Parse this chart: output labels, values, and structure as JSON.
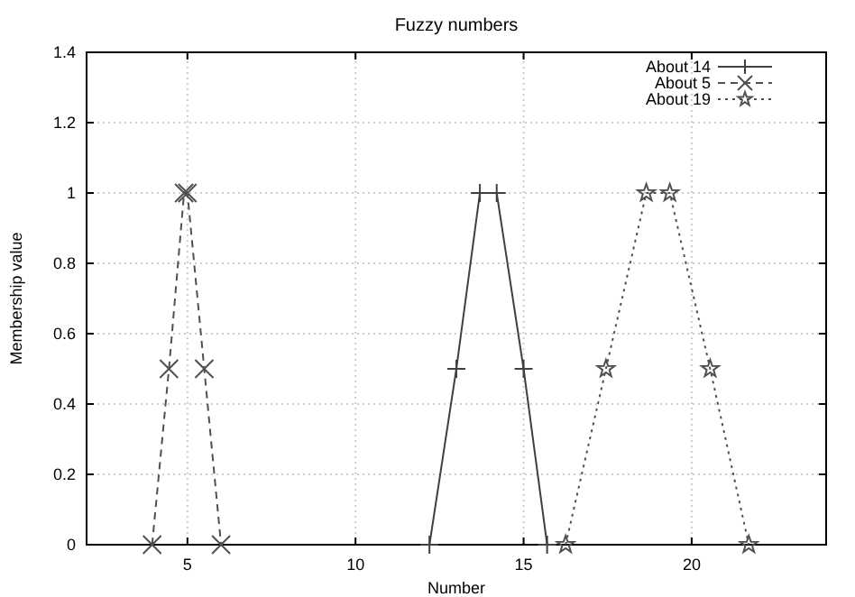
{
  "chart_data": {
    "type": "line",
    "title": "Fuzzy numbers",
    "xlabel": "Number",
    "ylabel": "Membership value",
    "xlim": [
      2,
      24
    ],
    "xticks": [
      5,
      10,
      15,
      20
    ],
    "ylim": [
      0,
      1.4
    ],
    "yticks": [
      0,
      0.2,
      0.4,
      0.6,
      0.8,
      1,
      1.2,
      1.4
    ],
    "grid": true,
    "legend": "top right",
    "series": [
      {
        "name": "About 14",
        "color": "#404040",
        "marker": "cross",
        "line_style": "solid",
        "x": [
          12.2,
          13,
          13.7,
          14.2,
          15,
          15.7
        ],
        "values": [
          0,
          0.5,
          1,
          1,
          0.5,
          0
        ]
      },
      {
        "name": "About 5",
        "color": "#505050",
        "marker": "x",
        "line_style": "dashed",
        "x": [
          3.95,
          4.45,
          4.9,
          5.0,
          5.5,
          6.0
        ],
        "values": [
          0,
          0.5,
          1,
          1,
          0.5,
          0
        ]
      },
      {
        "name": "About 19",
        "color": "#505050",
        "marker": "star",
        "line_style": "dotted",
        "x": [
          16.25,
          17.45,
          18.65,
          19.35,
          20.55,
          21.7
        ],
        "values": [
          0,
          0.5,
          1,
          1,
          0.5,
          0
        ]
      }
    ]
  }
}
